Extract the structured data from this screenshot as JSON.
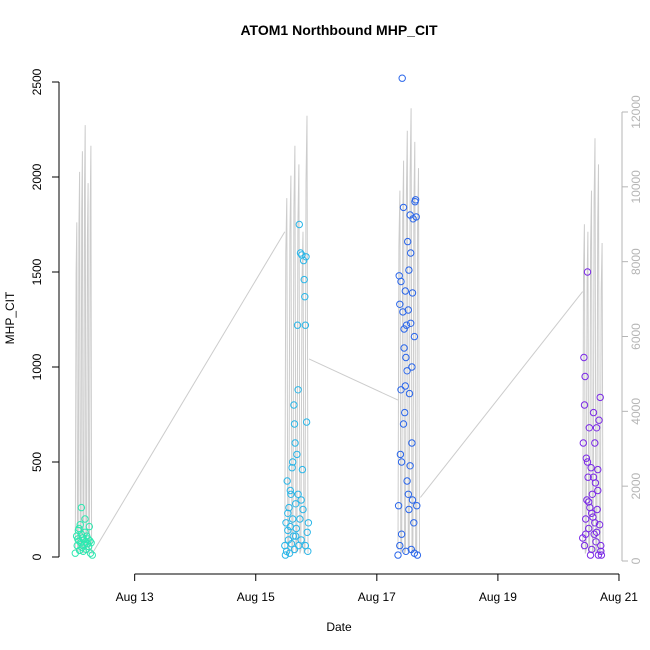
{
  "chart_data": {
    "type": "scatter",
    "title": "ATOM1 Northbound MHP_CIT",
    "xlabel": "Date",
    "ylabel": "MHP_CIT",
    "x_ticks": [
      {
        "label": "Aug 13",
        "day": 13
      },
      {
        "label": "Aug 15",
        "day": 15
      },
      {
        "label": "Aug 17",
        "day": 17
      },
      {
        "label": "Aug 19",
        "day": 19
      },
      {
        "label": "Aug 21",
        "day": 21
      }
    ],
    "xlim_days": [
      11.75,
      21.05
    ],
    "ylim": [
      0,
      2520
    ],
    "y_ticks": [
      0,
      500,
      1000,
      1500,
      2000,
      2500
    ],
    "y2_ticks": [
      0,
      2000,
      4000,
      6000,
      8000,
      10000,
      12000
    ],
    "y2lim": [
      0,
      12100
    ],
    "background_line_color": "#cccccc",
    "clusters": [
      {
        "color": "#2ee8b0",
        "points": [
          [
            12.02,
            20
          ],
          [
            12.04,
            110
          ],
          [
            12.05,
            60
          ],
          [
            12.06,
            95
          ],
          [
            12.07,
            140
          ],
          [
            12.08,
            85
          ],
          [
            12.09,
            35
          ],
          [
            12.1,
            170
          ],
          [
            12.11,
            75
          ],
          [
            12.12,
            120
          ],
          [
            12.13,
            50
          ],
          [
            12.14,
            100
          ],
          [
            12.15,
            30
          ],
          [
            12.16,
            90
          ],
          [
            12.17,
            65
          ],
          [
            12.18,
            130
          ],
          [
            12.19,
            80
          ],
          [
            12.2,
            40
          ],
          [
            12.21,
            110
          ],
          [
            12.22,
            70
          ],
          [
            12.23,
            95
          ],
          [
            12.24,
            55
          ],
          [
            12.25,
            160
          ],
          [
            12.26,
            85
          ],
          [
            12.27,
            20
          ],
          [
            12.28,
            75
          ],
          [
            12.3,
            10
          ],
          [
            12.12,
            260
          ],
          [
            12.18,
            200
          ],
          [
            12.08,
            150
          ]
        ]
      },
      {
        "color": "#2ab6e8",
        "points": [
          [
            15.48,
            60
          ],
          [
            15.5,
            180
          ],
          [
            15.51,
            30
          ],
          [
            15.52,
            400
          ],
          [
            15.53,
            140
          ],
          [
            15.54,
            90
          ],
          [
            15.55,
            260
          ],
          [
            15.56,
            20
          ],
          [
            15.57,
            160
          ],
          [
            15.58,
            330
          ],
          [
            15.59,
            70
          ],
          [
            15.6,
            470
          ],
          [
            15.61,
            200
          ],
          [
            15.62,
            110
          ],
          [
            15.63,
            800
          ],
          [
            15.64,
            40
          ],
          [
            15.65,
            600
          ],
          [
            15.66,
            280
          ],
          [
            15.67,
            150
          ],
          [
            15.68,
            540
          ],
          [
            15.69,
            1220
          ],
          [
            15.7,
            330
          ],
          [
            15.71,
            60
          ],
          [
            15.72,
            1750
          ],
          [
            15.73,
            200
          ],
          [
            15.74,
            1600
          ],
          [
            15.75,
            90
          ],
          [
            15.76,
            1590
          ],
          [
            15.77,
            460
          ],
          [
            15.78,
            250
          ],
          [
            15.79,
            1560
          ],
          [
            15.8,
            1460
          ],
          [
            15.81,
            1370
          ],
          [
            15.82,
            1220
          ],
          [
            15.83,
            1580
          ],
          [
            15.84,
            710
          ],
          [
            15.85,
            130
          ],
          [
            15.86,
            30
          ],
          [
            15.87,
            180
          ],
          [
            15.49,
            10
          ],
          [
            15.57,
            350
          ],
          [
            15.61,
            500
          ],
          [
            15.64,
            700
          ],
          [
            15.7,
            880
          ],
          [
            15.75,
            300
          ],
          [
            15.82,
            60
          ],
          [
            15.53,
            230
          ],
          [
            15.66,
            110
          ]
        ]
      },
      {
        "color": "#2a66ea",
        "points": [
          [
            17.35,
            10
          ],
          [
            17.36,
            270
          ],
          [
            17.37,
            1480
          ],
          [
            17.38,
            1330
          ],
          [
            17.39,
            540
          ],
          [
            17.4,
            1450
          ],
          [
            17.41,
            120
          ],
          [
            17.42,
            2520
          ],
          [
            17.43,
            1290
          ],
          [
            17.44,
            1840
          ],
          [
            17.45,
            1100
          ],
          [
            17.46,
            760
          ],
          [
            17.47,
            1400
          ],
          [
            17.48,
            30
          ],
          [
            17.49,
            1220
          ],
          [
            17.5,
            980
          ],
          [
            17.51,
            1660
          ],
          [
            17.52,
            330
          ],
          [
            17.53,
            1510
          ],
          [
            17.54,
            860
          ],
          [
            17.55,
            1800
          ],
          [
            17.56,
            1230
          ],
          [
            17.57,
            40
          ],
          [
            17.58,
            600
          ],
          [
            17.59,
            1390
          ],
          [
            17.6,
            1780
          ],
          [
            17.61,
            180
          ],
          [
            17.62,
            1160
          ],
          [
            17.63,
            1870
          ],
          [
            17.64,
            1880
          ],
          [
            17.65,
            1790
          ],
          [
            17.66,
            270
          ],
          [
            17.67,
            10
          ],
          [
            17.38,
            60
          ],
          [
            17.41,
            500
          ],
          [
            17.44,
            700
          ],
          [
            17.47,
            900
          ],
          [
            17.5,
            400
          ],
          [
            17.53,
            250
          ],
          [
            17.56,
            1600
          ],
          [
            17.59,
            300
          ],
          [
            17.62,
            20
          ],
          [
            17.45,
            1200
          ],
          [
            17.52,
            1300
          ],
          [
            17.55,
            480
          ],
          [
            17.48,
            1050
          ],
          [
            17.4,
            880
          ],
          [
            17.58,
            1000
          ]
        ]
      },
      {
        "color": "#7b2ae6",
        "points": [
          [
            20.4,
            100
          ],
          [
            20.41,
            600
          ],
          [
            20.42,
            1050
          ],
          [
            20.43,
            800
          ],
          [
            20.44,
            950
          ],
          [
            20.45,
            200
          ],
          [
            20.46,
            520
          ],
          [
            20.47,
            300
          ],
          [
            20.48,
            1500
          ],
          [
            20.49,
            420
          ],
          [
            20.5,
            150
          ],
          [
            20.51,
            680
          ],
          [
            20.52,
            260
          ],
          [
            20.53,
            10
          ],
          [
            20.54,
            470
          ],
          [
            20.55,
            40
          ],
          [
            20.56,
            330
          ],
          [
            20.57,
            210
          ],
          [
            20.58,
            760
          ],
          [
            20.59,
            120
          ],
          [
            20.6,
            600
          ],
          [
            20.61,
            390
          ],
          [
            20.62,
            80
          ],
          [
            20.63,
            680
          ],
          [
            20.64,
            250
          ],
          [
            20.65,
            460
          ],
          [
            20.66,
            10
          ],
          [
            20.67,
            720
          ],
          [
            20.68,
            170
          ],
          [
            20.69,
            840
          ],
          [
            20.7,
            30
          ],
          [
            20.71,
            10
          ],
          [
            20.45,
            120
          ],
          [
            20.5,
            290
          ],
          [
            20.55,
            230
          ],
          [
            20.6,
            180
          ],
          [
            20.65,
            350
          ],
          [
            20.7,
            60
          ],
          [
            20.48,
            500
          ],
          [
            20.58,
            420
          ],
          [
            20.43,
            60
          ],
          [
            20.63,
            130
          ]
        ]
      }
    ],
    "secondary_series": {
      "name": "",
      "color": "#cccccc",
      "segments": [
        {
          "start": 12.02,
          "end": 12.3,
          "peaks": [
            9050,
            10400,
            10950,
            11650,
            10100,
            11100
          ]
        },
        {
          "start": 15.48,
          "end": 15.88,
          "peaks": [
            9700,
            10300,
            11100,
            10600,
            8800,
            11900
          ]
        },
        {
          "start": 17.35,
          "end": 17.72,
          "peaks": [
            9900,
            10700,
            11500,
            12100,
            11200,
            10500
          ]
        },
        {
          "start": 20.4,
          "end": 20.75,
          "peaks": [
            9000,
            8800,
            9900,
            11300,
            10600,
            8500
          ]
        }
      ],
      "bridges": [
        [
          [
            12.3,
            200
          ],
          [
            15.48,
            8800
          ]
        ],
        [
          [
            15.88,
            5400
          ],
          [
            17.35,
            4300
          ]
        ],
        [
          [
            17.72,
            1700
          ],
          [
            20.4,
            7200
          ]
        ]
      ]
    }
  }
}
